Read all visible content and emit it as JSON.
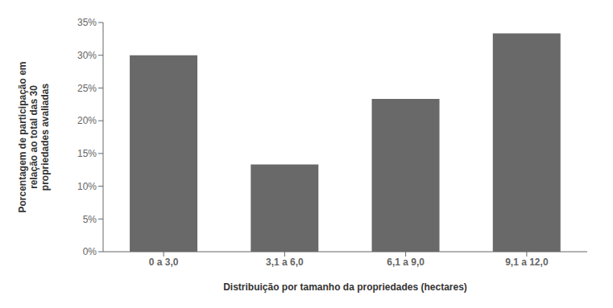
{
  "chart_data": {
    "type": "bar",
    "categories": [
      "0 a 3,0",
      "3,1 a 6,0",
      "6,1 a 9,0",
      "9,1 a 12,0"
    ],
    "values": [
      0.3,
      0.1333,
      0.2333,
      0.3333
    ],
    "color": "#696969",
    "xlabel": "Distribuição por tamanho da propriedades (hectares)",
    "ylabel": "Porcentagem de participação em\nrelação ao total das 30\npropriedades avaliadas",
    "ylim": [
      0,
      0.35
    ],
    "yticks": [
      {
        "value": 0.0,
        "label": "0%"
      },
      {
        "value": 0.05,
        "label": "5%"
      },
      {
        "value": 0.1,
        "label": "10%"
      },
      {
        "value": 0.15,
        "label": "15%"
      },
      {
        "value": 0.2,
        "label": "20%"
      },
      {
        "value": 0.25,
        "label": "25%"
      },
      {
        "value": 0.3,
        "label": "30%"
      },
      {
        "value": 0.35,
        "label": "35%"
      }
    ],
    "grid": false
  }
}
